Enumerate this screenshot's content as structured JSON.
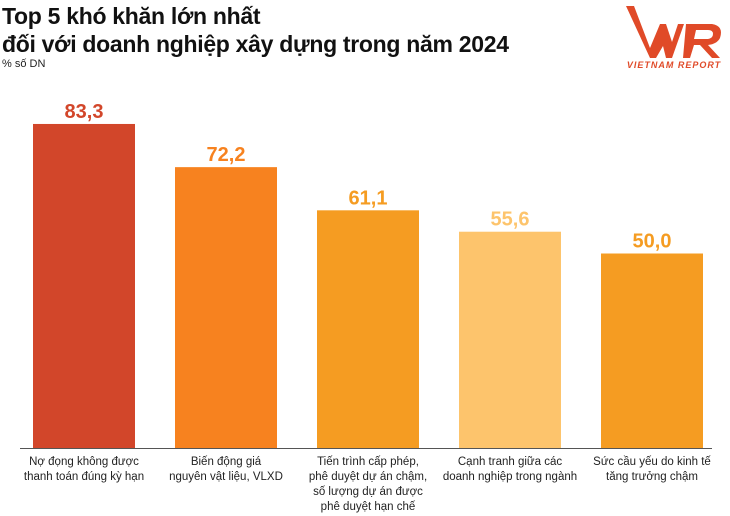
{
  "title_line1": "Top 5 khó khăn lớn nhất",
  "title_line2": "đối với doanh nghiệp xây dựng trong năm 2024",
  "subtitle": "% số DN",
  "logo": {
    "text": "VNR",
    "tagline": "VIETNAM REPORT",
    "color": "#e04a28"
  },
  "chart_data": {
    "type": "bar",
    "title": "Top 5 khó khăn lớn nhất đối với doanh nghiệp xây dựng trong năm 2024",
    "ylabel": "% số DN",
    "categories": [
      "Nợ đọng không được thanh toán đúng kỳ hạn",
      "Biến động giá nguyên vật liệu, VLXD",
      "Tiến trình cấp phép, phê duyệt dự án chậm, số lượng dự án được phê duyệt hạn chế",
      "Cạnh tranh giữa các doanh nghiệp trong ngành",
      "Sức cầu yếu do kinh tế tăng trưởng chậm"
    ],
    "category_lines": [
      [
        "Nợ đọng không được",
        "thanh toán đúng kỳ hạn"
      ],
      [
        "Biến động giá",
        "nguyên vật liệu, VLXD"
      ],
      [
        "Tiến trình cấp phép,",
        "phê duyệt dự án chậm,",
        "số lượng dự án được",
        "phê duyệt hạn chế"
      ],
      [
        "Cạnh tranh giữa các",
        "doanh nghiệp trong ngành"
      ],
      [
        "Sức cầu yếu do kinh tế",
        "tăng trưởng chậm"
      ]
    ],
    "values": [
      83.3,
      72.2,
      61.1,
      55.6,
      50.0
    ],
    "value_labels": [
      "83,3",
      "72,2",
      "61,1",
      "55,6",
      "50,0"
    ],
    "colors": [
      "#d2462a",
      "#f7821f",
      "#f59c22",
      "#fdc46c",
      "#f59c22"
    ],
    "ylim": [
      0,
      100
    ],
    "grid": false
  }
}
